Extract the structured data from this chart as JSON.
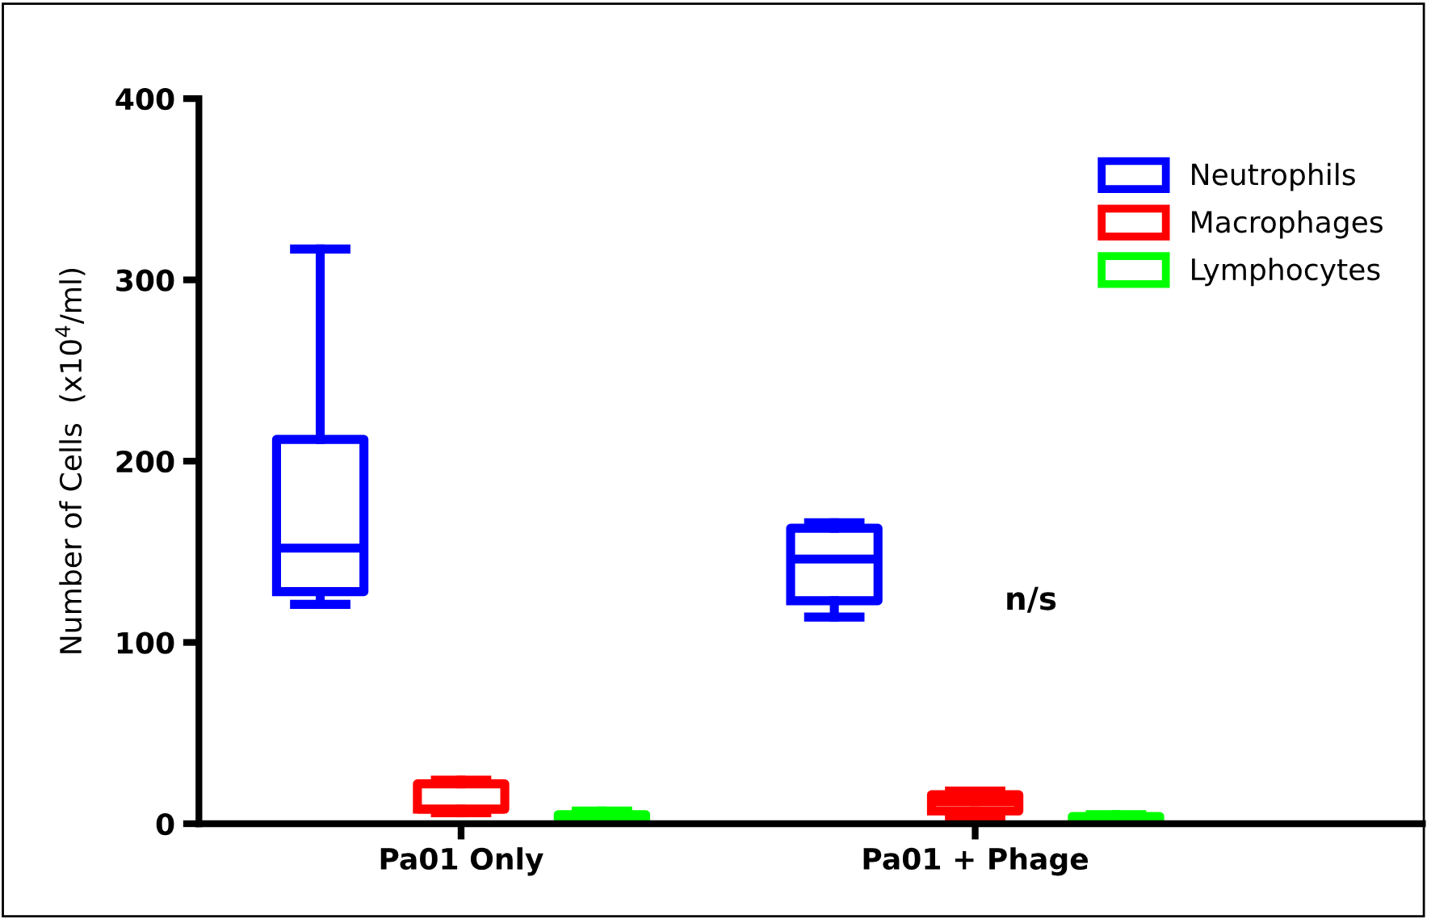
{
  "chart_data": {
    "type": "box",
    "ylabel": "Number of Cells  (x10$^{4}$/ml)",
    "categories": [
      "Pa01 Only",
      "Pa01 + Phage"
    ],
    "series": [
      {
        "name": "Neutrophils",
        "color": "#0000ff",
        "boxes": [
          {
            "low": 121,
            "q1": 128,
            "median": 152,
            "q3": 212,
            "high": 317
          },
          {
            "low": 114,
            "q1": 123,
            "median": 146,
            "q3": 163,
            "high": 166
          }
        ]
      },
      {
        "name": "Macrophages",
        "color": "#ff0000",
        "boxes": [
          {
            "low": 6,
            "q1": 8,
            "median": 8,
            "q3": 22,
            "high": 24
          },
          {
            "low": 3,
            "q1": 7,
            "median": 12,
            "q3": 16,
            "high": 18
          }
        ]
      },
      {
        "name": "Lymphocytes",
        "color": "#00ff00",
        "boxes": [
          {
            "low": 2,
            "q1": 2,
            "median": 4,
            "q3": 5,
            "high": 7
          },
          {
            "low": 1,
            "q1": 1,
            "median": 2,
            "q3": 4,
            "high": 5
          }
        ]
      }
    ],
    "ylim": [
      0,
      400
    ],
    "yticks": [
      0,
      100,
      200,
      300,
      400
    ],
    "grid": false,
    "legend": "top right",
    "annotations": [
      "n/s"
    ]
  }
}
